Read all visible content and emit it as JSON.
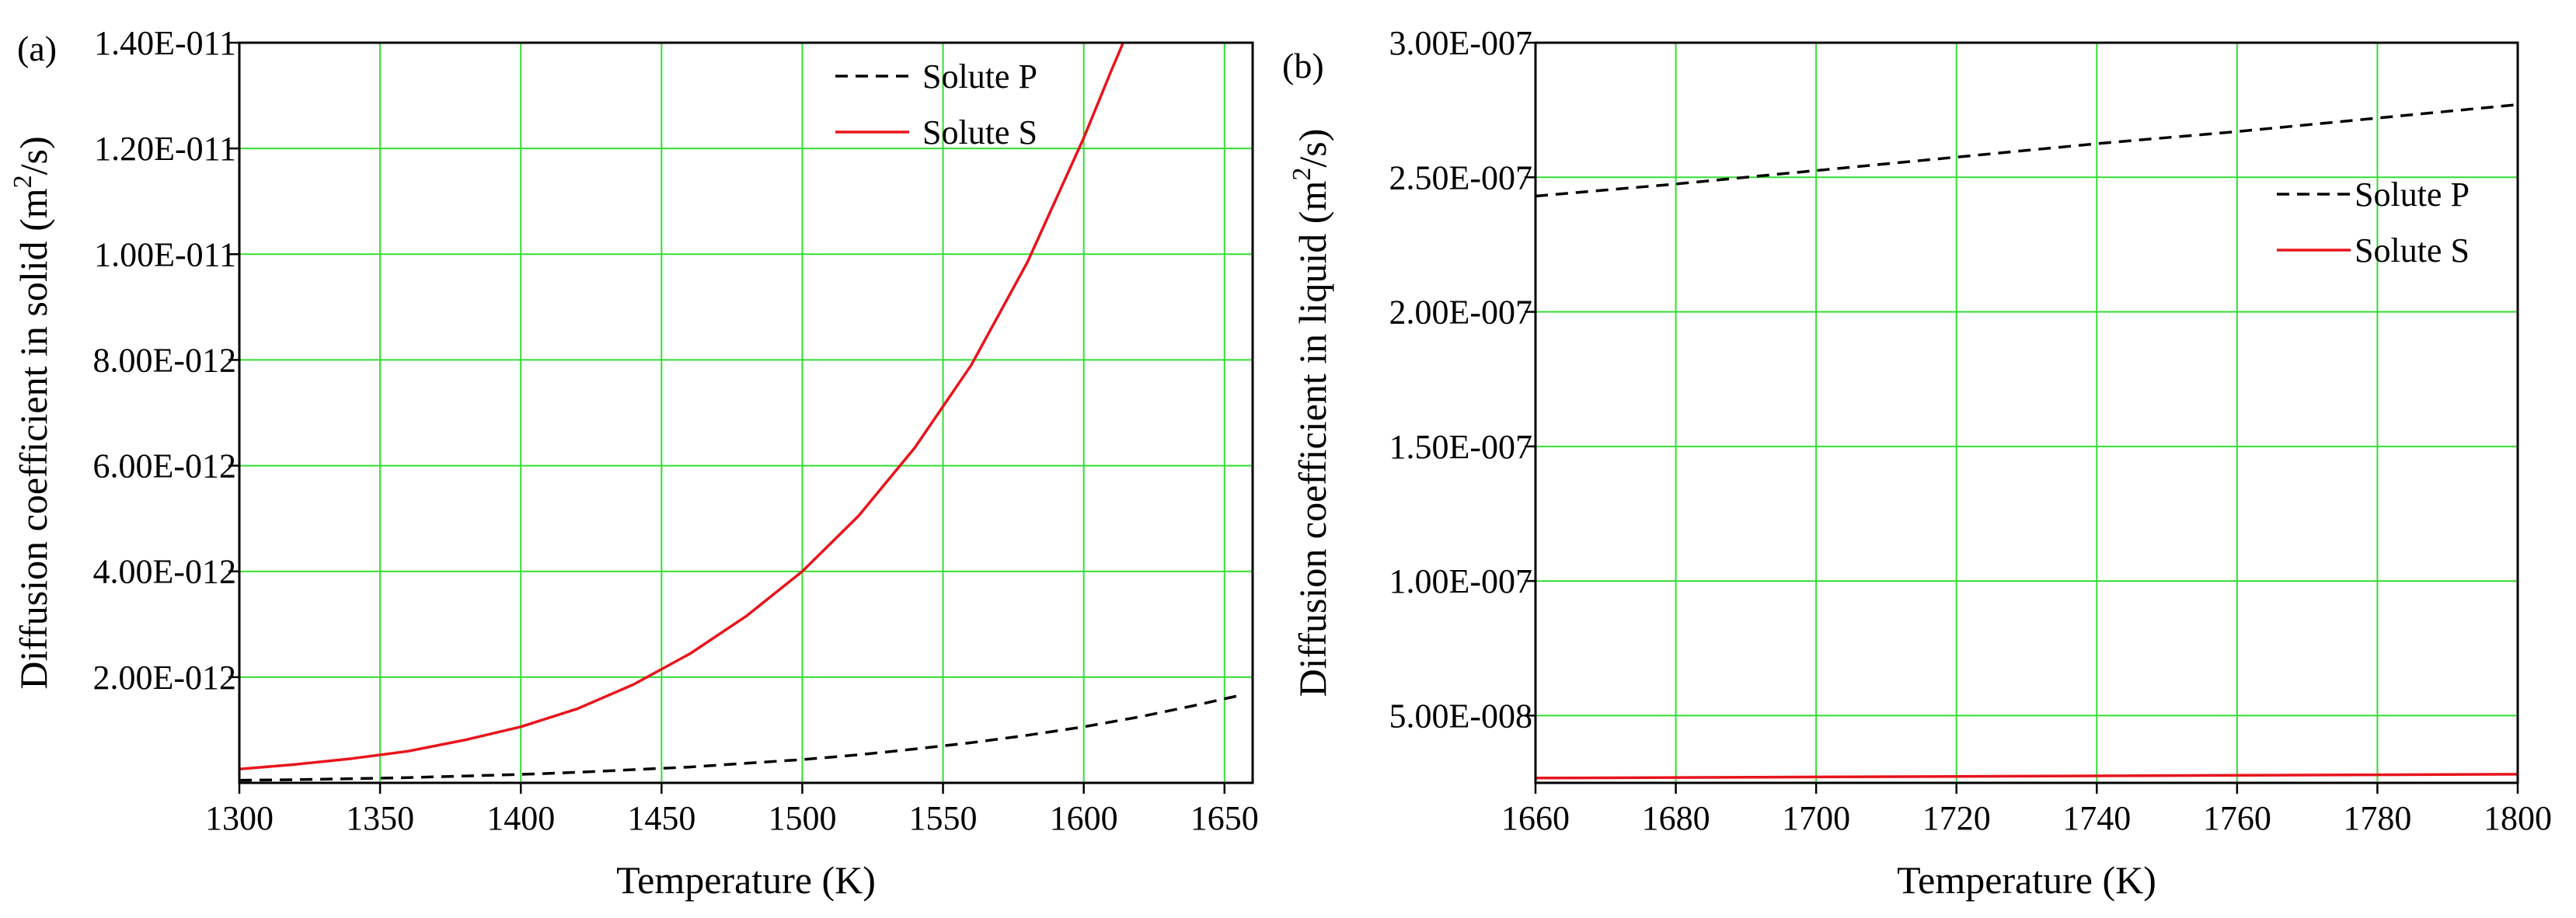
{
  "colors": {
    "grid": "#33dd33",
    "solute_p": "#000000",
    "solute_s": "#e8141b",
    "frame": "#000000"
  },
  "chart_data": [
    {
      "type": "line",
      "panel_label": "(a)",
      "xlabel": "Temperature (K)",
      "ylabel_prefix": "Diffusion coefficient in solid (m",
      "ylabel_sup": "2",
      "ylabel_suffix": "/s)",
      "xlim": [
        1300,
        1660
      ],
      "ylim": [
        0,
        1.4e-11
      ],
      "x_ticks": [
        1300,
        1350,
        1400,
        1450,
        1500,
        1550,
        1600,
        1650
      ],
      "x_tick_labels": [
        "1300",
        "1350",
        "1400",
        "1450",
        "1500",
        "1550",
        "1600",
        "1650"
      ],
      "y_ticks": [
        2e-12,
        4e-12,
        6e-12,
        8e-12,
        1e-11,
        1.2e-11,
        1.4e-11
      ],
      "y_tick_labels": [
        "2.00E-012",
        "4.00E-012",
        "6.00E-012",
        "8.00E-012",
        "1.00E-011",
        "1.20E-011",
        "1.40E-011"
      ],
      "legend_position": "top-right",
      "series": [
        {
          "name": "Solute P",
          "style": "dashed",
          "x": [
            1300,
            1320,
            1340,
            1360,
            1380,
            1400,
            1420,
            1440,
            1460,
            1480,
            1500,
            1520,
            1540,
            1560,
            1580,
            1600,
            1620,
            1640,
            1655
          ],
          "values": [
            5e-14,
            6e-14,
            8e-14,
            1e-13,
            1.3e-13,
            1.6e-13,
            2e-13,
            2.5e-13,
            3e-13,
            3.7e-13,
            4.4e-13,
            5.3e-13,
            6.4e-13,
            7.6e-13,
            9e-13,
            1.06e-12,
            1.25e-12,
            1.47e-12,
            1.65e-12
          ]
        },
        {
          "name": "Solute S",
          "style": "solid",
          "x": [
            1300,
            1320,
            1340,
            1360,
            1380,
            1400,
            1420,
            1440,
            1460,
            1480,
            1500,
            1520,
            1540,
            1560,
            1580,
            1600,
            1610,
            1614
          ],
          "values": [
            2.6e-13,
            3.5e-13,
            4.6e-13,
            6e-13,
            8.1e-13,
            1.06e-12,
            1.4e-12,
            1.86e-12,
            2.44e-12,
            3.15e-12,
            4e-12,
            5.05e-12,
            6.34e-12,
            7.9e-12,
            9.85e-12,
            1.22e-11,
            1.35e-11,
            1.4e-11
          ]
        }
      ]
    },
    {
      "type": "line",
      "panel_label": "(b)",
      "xlabel": "Temperature (K)",
      "ylabel_prefix": "Diffusion coefficient in liquid (m",
      "ylabel_sup": "2",
      "ylabel_suffix": "/s)",
      "xlim": [
        1660,
        1800
      ],
      "ylim": [
        2.5e-08,
        3e-07
      ],
      "x_ticks": [
        1660,
        1680,
        1700,
        1720,
        1740,
        1760,
        1780,
        1800
      ],
      "x_tick_labels": [
        "1660",
        "1680",
        "1700",
        "1720",
        "1740",
        "1760",
        "1780",
        "1800"
      ],
      "y_ticks": [
        5e-08,
        1e-07,
        1.5e-07,
        2e-07,
        2.5e-07,
        3e-07
      ],
      "y_tick_labels": [
        "5.00E-008",
        "1.00E-007",
        "1.50E-007",
        "2.00E-007",
        "2.50E-007",
        "3.00E-007"
      ],
      "legend_position": "top-right",
      "series": [
        {
          "name": "Solute P",
          "style": "dashed",
          "x": [
            1660,
            1680,
            1700,
            1720,
            1740,
            1760,
            1780,
            1800
          ],
          "values": [
            2.43e-07,
            2.475e-07,
            2.525e-07,
            2.575e-07,
            2.625e-07,
            2.67e-07,
            2.72e-07,
            2.77e-07
          ]
        },
        {
          "name": "Solute S",
          "style": "solid",
          "x": [
            1660,
            1680,
            1700,
            1720,
            1740,
            1760,
            1780,
            1800
          ],
          "values": [
            2.68e-08,
            2.7e-08,
            2.72e-08,
            2.74e-08,
            2.76e-08,
            2.78e-08,
            2.8e-08,
            2.82e-08
          ]
        }
      ]
    }
  ]
}
